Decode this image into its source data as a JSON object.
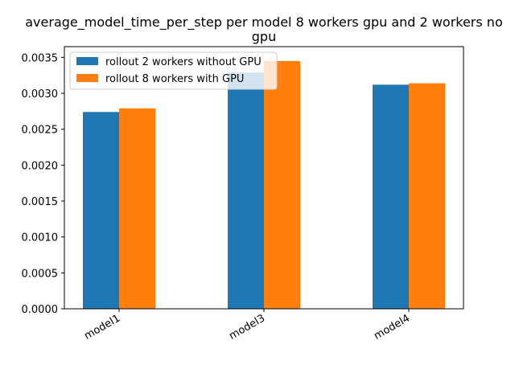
{
  "chart_data": {
    "type": "bar",
    "title_line1": "average_model_time_per_step per model 8 workers gpu and 2 workers no",
    "title_line2": "gpu",
    "categories": [
      "model1",
      "model3",
      "model4"
    ],
    "series": [
      {
        "name": "rollout 2 workers without GPU",
        "color": "#1f77b4",
        "values": [
          0.00274,
          0.00329,
          0.00312
        ]
      },
      {
        "name": "rollout 8 workers with GPU",
        "color": "#ff7f0e",
        "values": [
          0.00279,
          0.00345,
          0.00314
        ]
      }
    ],
    "ylim": [
      0,
      0.00365
    ],
    "yticks": [
      "0.0000",
      "0.0005",
      "0.0010",
      "0.0015",
      "0.0020",
      "0.0025",
      "0.0030",
      "0.0035"
    ],
    "legend_position": "top-left",
    "grid": false
  }
}
